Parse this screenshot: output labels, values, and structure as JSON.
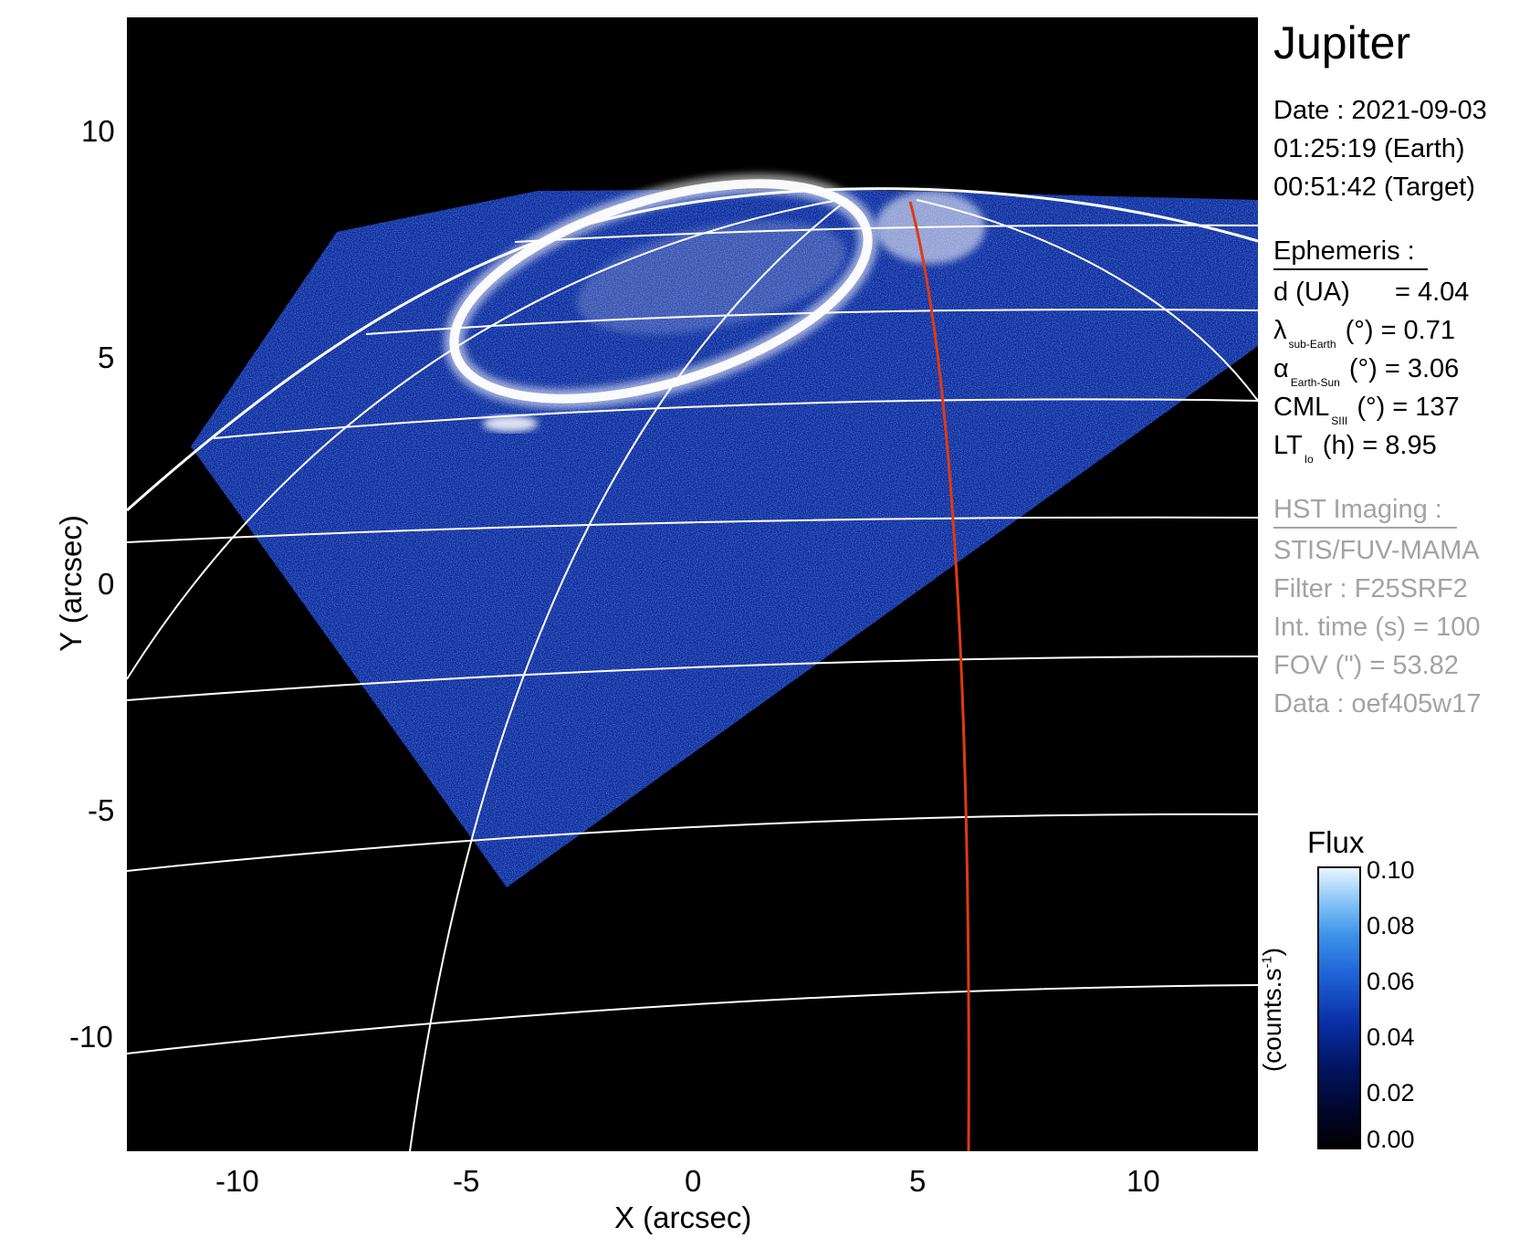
{
  "figure": {
    "target": "Jupiter",
    "date_line": "Date : 2021-09-03",
    "time_earth": "01:25:19 (Earth)",
    "time_target": "00:51:42 (Target)"
  },
  "ephemeris": {
    "heading": "Ephemeris :",
    "d_label": "d (UA)",
    "d_value": "= 4.04",
    "lambda_symbol": "λ",
    "lambda_sub": "sub-Earth",
    "lambda_value": "(°) = 0.71",
    "alpha_symbol": "α",
    "alpha_sub": "Earth-Sun",
    "alpha_value": "(°) = 3.06",
    "cml_label": "CML",
    "cml_sub": "SIII",
    "cml_value": "(°) = 137",
    "lt_label": "LT",
    "lt_sub": "Io",
    "lt_value": "(h) = 8.95"
  },
  "hst": {
    "heading": "HST Imaging :",
    "instrument": "STIS/FUV-MAMA",
    "filter": "Filter : F25SRF2",
    "int_time": "Int. time (s) = 100",
    "fov": "FOV (\") = 53.82",
    "data": "Data : oef405w17"
  },
  "axes": {
    "x_title": "X (arcsec)",
    "y_title": "Y (arcsec)",
    "x_ticks": [
      "-10",
      "-5",
      "0",
      "5",
      "10"
    ],
    "y_ticks": [
      "10",
      "5",
      "0",
      "-5",
      "-10"
    ]
  },
  "colorbar": {
    "title": "Flux",
    "unit": "(counts.s",
    "unit_exp": "-1",
    "unit_close": ")",
    "ticks": [
      "0.10",
      "0.08",
      "0.06",
      "0.04",
      "0.02",
      "0.00"
    ],
    "range": [
      0.0,
      0.1
    ]
  },
  "colors": {
    "background": "#000000",
    "emission_low": "#0a2a9c",
    "emission_high": "#ffffff",
    "grid": "#ffffff",
    "io_footprint": "#e03a10",
    "gray_text": "#a3a3a3"
  }
}
